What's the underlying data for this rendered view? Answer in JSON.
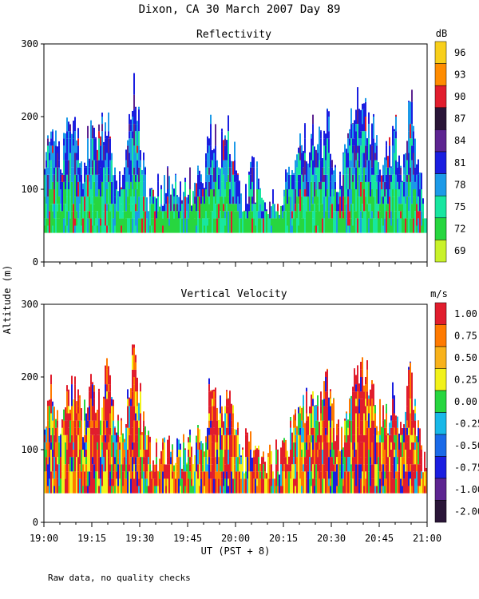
{
  "page": {
    "title": "Dixon, CA 30 March 2007  Day  89",
    "footnote": "Raw data, no quality checks",
    "shared_ylabel": "Altitude (m)",
    "shared_xlabel": "UT  (PST + 8)"
  },
  "chart_data": [
    {
      "type": "heatmap",
      "title": "Reflectivity",
      "xlabel": "UT  (PST + 8)",
      "ylabel": "Altitude (m)",
      "x_range_minutes": [
        0,
        120
      ],
      "x_ticks": [
        {
          "value": 0,
          "label": "19:00"
        },
        {
          "value": 15,
          "label": "19:15"
        },
        {
          "value": 30,
          "label": "19:30"
        },
        {
          "value": 45,
          "label": "19:45"
        },
        {
          "value": 60,
          "label": "20:00"
        },
        {
          "value": 75,
          "label": "20:15"
        },
        {
          "value": 90,
          "label": "20:30"
        },
        {
          "value": 105,
          "label": "20:45"
        },
        {
          "value": 120,
          "label": "21:00"
        }
      ],
      "ylim": [
        0,
        300
      ],
      "y_ticks": [
        0,
        100,
        200,
        300
      ],
      "data_min_altitude": 40,
      "colorbar": {
        "unit": "dB",
        "labels": [
          "96",
          "93",
          "90",
          "87",
          "84",
          "81",
          "78",
          "75",
          "72",
          "69"
        ],
        "colors": [
          "#f8cf1b",
          "#ff8c00",
          "#e11d2d",
          "#2a1538",
          "#5d2491",
          "#1a1ee0",
          "#1c9ae8",
          "#18e6a0",
          "#27d63f",
          "#c9f22a"
        ]
      },
      "dominant_colors": [
        "#27d63f",
        "#18e6a0",
        "#1c9ae8",
        "#1a1ee0",
        "#5d2491",
        "#e11d2d"
      ],
      "echo_top_profile": [
        [
          0,
          120
        ],
        [
          2,
          220
        ],
        [
          5,
          160
        ],
        [
          8,
          200
        ],
        [
          10,
          220
        ],
        [
          12,
          150
        ],
        [
          15,
          200
        ],
        [
          17,
          180
        ],
        [
          20,
          220
        ],
        [
          22,
          150
        ],
        [
          25,
          140
        ],
        [
          28,
          260
        ],
        [
          30,
          200
        ],
        [
          32,
          120
        ],
        [
          35,
          110
        ],
        [
          38,
          130
        ],
        [
          42,
          110
        ],
        [
          45,
          120
        ],
        [
          50,
          140
        ],
        [
          52,
          200
        ],
        [
          55,
          170
        ],
        [
          58,
          200
        ],
        [
          60,
          150
        ],
        [
          62,
          110
        ],
        [
          65,
          140
        ],
        [
          68,
          120
        ],
        [
          70,
          110
        ],
        [
          72,
          100
        ],
        [
          75,
          120
        ],
        [
          78,
          150
        ],
        [
          80,
          200
        ],
        [
          82,
          180
        ],
        [
          85,
          200
        ],
        [
          87,
          180
        ],
        [
          88,
          220
        ],
        [
          90,
          190
        ],
        [
          92,
          140
        ],
        [
          95,
          160
        ],
        [
          97,
          240
        ],
        [
          100,
          230
        ],
        [
          103,
          200
        ],
        [
          105,
          160
        ],
        [
          108,
          170
        ],
        [
          110,
          200
        ],
        [
          112,
          150
        ],
        [
          115,
          240
        ],
        [
          117,
          140
        ],
        [
          120,
          80
        ]
      ]
    },
    {
      "type": "heatmap",
      "title": "Vertical Velocity",
      "xlabel": "UT  (PST + 8)",
      "ylabel": "Altitude (m)",
      "x_range_minutes": [
        0,
        120
      ],
      "x_ticks": [
        {
          "value": 0,
          "label": "19:00"
        },
        {
          "value": 15,
          "label": "19:15"
        },
        {
          "value": 30,
          "label": "19:30"
        },
        {
          "value": 45,
          "label": "19:45"
        },
        {
          "value": 60,
          "label": "20:00"
        },
        {
          "value": 75,
          "label": "20:15"
        },
        {
          "value": 90,
          "label": "20:30"
        },
        {
          "value": 105,
          "label": "20:45"
        },
        {
          "value": 120,
          "label": "21:00"
        }
      ],
      "ylim": [
        0,
        300
      ],
      "y_ticks": [
        0,
        100,
        200,
        300
      ],
      "data_min_altitude": 40,
      "colorbar": {
        "unit": "m/s",
        "labels": [
          "1.00",
          "0.75",
          "0.50",
          "0.25",
          "0.00",
          "-0.25",
          "-0.50",
          "-0.75",
          "-1.00",
          "-2.00"
        ],
        "colors": [
          "#e11d2d",
          "#ff7a00",
          "#f8b21b",
          "#f2f21a",
          "#27d63f",
          "#18b8e8",
          "#1a6ae8",
          "#1a1ee0",
          "#5d2491",
          "#2a1538"
        ]
      },
      "dominant_colors": [
        "#e11d2d",
        "#ff7a00",
        "#f2f21a",
        "#27d63f",
        "#18b8e8",
        "#1a1ee0"
      ],
      "echo_top_profile": [
        [
          0,
          120
        ],
        [
          2,
          220
        ],
        [
          5,
          160
        ],
        [
          8,
          200
        ],
        [
          10,
          220
        ],
        [
          12,
          150
        ],
        [
          15,
          200
        ],
        [
          17,
          180
        ],
        [
          20,
          220
        ],
        [
          22,
          150
        ],
        [
          25,
          140
        ],
        [
          28,
          260
        ],
        [
          30,
          200
        ],
        [
          32,
          120
        ],
        [
          35,
          110
        ],
        [
          38,
          130
        ],
        [
          42,
          110
        ],
        [
          45,
          120
        ],
        [
          50,
          140
        ],
        [
          52,
          200
        ],
        [
          55,
          170
        ],
        [
          58,
          200
        ],
        [
          60,
          150
        ],
        [
          62,
          110
        ],
        [
          65,
          140
        ],
        [
          68,
          120
        ],
        [
          70,
          110
        ],
        [
          72,
          100
        ],
        [
          75,
          120
        ],
        [
          78,
          150
        ],
        [
          80,
          200
        ],
        [
          82,
          180
        ],
        [
          85,
          200
        ],
        [
          87,
          180
        ],
        [
          88,
          220
        ],
        [
          90,
          190
        ],
        [
          92,
          140
        ],
        [
          95,
          160
        ],
        [
          97,
          240
        ],
        [
          100,
          230
        ],
        [
          103,
          200
        ],
        [
          105,
          160
        ],
        [
          108,
          170
        ],
        [
          110,
          200
        ],
        [
          112,
          150
        ],
        [
          115,
          240
        ],
        [
          117,
          140
        ],
        [
          120,
          80
        ]
      ]
    }
  ]
}
